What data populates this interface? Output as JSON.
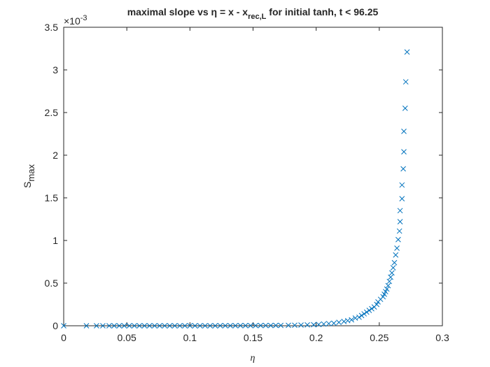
{
  "chart_data": {
    "type": "scatter",
    "title": [
      "maximal slope vs η = x - x",
      "rec,L",
      " for initial tanh, t < 96.25"
    ],
    "xlabel": "η",
    "ylabel": [
      "S",
      "max"
    ],
    "y_exponent": [
      "×10",
      "-3"
    ],
    "marker": "x",
    "color": "#0072bd",
    "xlim": [
      0,
      0.3
    ],
    "xticks": [
      0,
      0.05,
      0.1,
      0.15,
      0.2,
      0.25,
      0.3
    ],
    "ylim": [
      0,
      3.5
    ],
    "yticks": [
      0,
      0.5,
      1,
      1.5,
      2,
      2.5,
      3,
      3.5
    ],
    "x": [
      0,
      0.018,
      0.026,
      0.031,
      0.036,
      0.04,
      0.044,
      0.048,
      0.052,
      0.056,
      0.06,
      0.064,
      0.068,
      0.072,
      0.076,
      0.08,
      0.084,
      0.088,
      0.092,
      0.096,
      0.1,
      0.104,
      0.108,
      0.112,
      0.116,
      0.12,
      0.124,
      0.128,
      0.132,
      0.136,
      0.14,
      0.144,
      0.148,
      0.152,
      0.156,
      0.16,
      0.164,
      0.168,
      0.172,
      0.178,
      0.183,
      0.188,
      0.193,
      0.198,
      0.202,
      0.206,
      0.21,
      0.214,
      0.218,
      0.222,
      0.225,
      0.228,
      0.231,
      0.234,
      0.236,
      0.238,
      0.24,
      0.242,
      0.244,
      0.246,
      0.248,
      0.249,
      0.251,
      0.253,
      0.254,
      0.255,
      0.256,
      0.257,
      0.258,
      0.259,
      0.26,
      0.261,
      0.262,
      0.263,
      0.264,
      0.265,
      0.266,
      0.2665,
      0.2665,
      0.268,
      0.268,
      0.269,
      0.2695,
      0.2695,
      0.2705,
      0.271,
      0.272
    ],
    "values": [
      0,
      0,
      0,
      0,
      0,
      0,
      0,
      0,
      0,
      0,
      0,
      0,
      0,
      0,
      0,
      0,
      0,
      0,
      0,
      0,
      0,
      0,
      0,
      0,
      0,
      0,
      0.001,
      0.001,
      0.001,
      0.001,
      0.002,
      0.002,
      0.002,
      0.002,
      0.003,
      0.003,
      0.003,
      0.004,
      0.004,
      0.005,
      0.006,
      0.008,
      0.01,
      0.012,
      0.015,
      0.02,
      0.025,
      0.03,
      0.04,
      0.05,
      0.06,
      0.07,
      0.09,
      0.1,
      0.12,
      0.14,
      0.16,
      0.18,
      0.2,
      0.22,
      0.25,
      0.28,
      0.31,
      0.34,
      0.37,
      0.4,
      0.43,
      0.47,
      0.52,
      0.57,
      0.62,
      0.68,
      0.74,
      0.83,
      0.91,
      1.01,
      1.11,
      1.22,
      1.35,
      1.49,
      1.65,
      1.84,
      2.04,
      2.28,
      2.55,
      2.86,
      3.21
    ]
  }
}
